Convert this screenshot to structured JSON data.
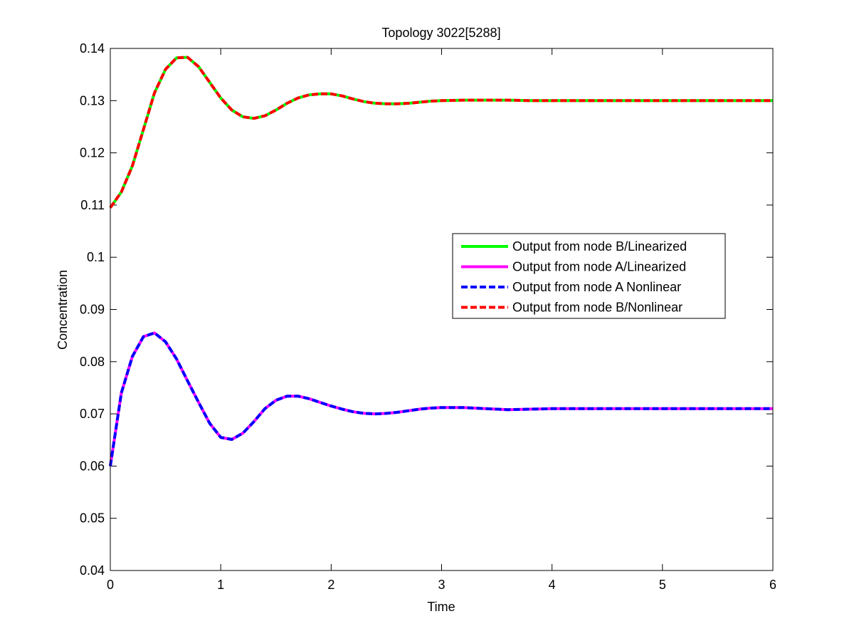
{
  "chart_data": {
    "type": "line",
    "title": "Topology 3022[5288]",
    "xlabel": "Time",
    "ylabel": "Concentration",
    "xlim": [
      0,
      6
    ],
    "ylim": [
      0.04,
      0.14
    ],
    "xticks": [
      0,
      1,
      2,
      3,
      4,
      5,
      6
    ],
    "xtick_labels": [
      "0",
      "1",
      "2",
      "3",
      "4",
      "5",
      "6"
    ],
    "yticks": [
      0.04,
      0.05,
      0.06,
      0.07,
      0.08,
      0.09,
      0.1,
      0.11,
      0.12,
      0.13,
      0.14
    ],
    "ytick_labels": [
      "0.04",
      "0.05",
      "0.06",
      "0.07",
      "0.08",
      "0.09",
      "0.1",
      "0.11",
      "0.12",
      "0.13",
      "0.14"
    ],
    "grid": false,
    "legend_position": "center-right",
    "x": [
      0,
      0.1,
      0.2,
      0.3,
      0.4,
      0.5,
      0.6,
      0.7,
      0.8,
      0.9,
      1.0,
      1.1,
      1.2,
      1.3,
      1.4,
      1.5,
      1.6,
      1.7,
      1.8,
      1.9,
      2.0,
      2.1,
      2.2,
      2.3,
      2.4,
      2.5,
      2.6,
      2.7,
      2.8,
      2.9,
      3.0,
      3.2,
      3.4,
      3.6,
      3.8,
      4.0,
      4.5,
      5.0,
      5.5,
      6.0
    ],
    "series": [
      {
        "name": "Output from node B/Linearized",
        "color": "#00ff00",
        "style": "solid",
        "values": [
          0.1095,
          0.1125,
          0.1175,
          0.1245,
          0.1315,
          0.136,
          0.1382,
          0.1383,
          0.1365,
          0.1335,
          0.1305,
          0.1282,
          0.1269,
          0.1266,
          0.1271,
          0.1282,
          0.1295,
          0.1305,
          0.1311,
          0.1313,
          0.1313,
          0.1309,
          0.1303,
          0.1298,
          0.1295,
          0.1294,
          0.1294,
          0.1295,
          0.1297,
          0.1299,
          0.13,
          0.1301,
          0.1301,
          0.1301,
          0.13,
          0.13,
          0.13,
          0.13,
          0.13,
          0.13
        ]
      },
      {
        "name": "Output from node A/Linearized",
        "color": "#ff00ff",
        "style": "solid",
        "values": [
          0.06,
          0.074,
          0.081,
          0.0848,
          0.0855,
          0.0838,
          0.0805,
          0.0763,
          0.0722,
          0.0682,
          0.0655,
          0.0651,
          0.0663,
          0.0685,
          0.071,
          0.0726,
          0.0734,
          0.0734,
          0.0729,
          0.0722,
          0.0715,
          0.0709,
          0.0704,
          0.0701,
          0.07,
          0.0701,
          0.0703,
          0.0706,
          0.0709,
          0.0711,
          0.0712,
          0.0712,
          0.071,
          0.0708,
          0.0709,
          0.071,
          0.071,
          0.071,
          0.071,
          0.071
        ]
      },
      {
        "name": "Output from node A Nonlinear",
        "color": "#0000ff",
        "style": "dashed",
        "values": [
          0.06,
          0.074,
          0.081,
          0.0848,
          0.0855,
          0.0838,
          0.0805,
          0.0763,
          0.0722,
          0.0682,
          0.0655,
          0.0651,
          0.0663,
          0.0685,
          0.071,
          0.0726,
          0.0734,
          0.0734,
          0.0729,
          0.0722,
          0.0715,
          0.0709,
          0.0704,
          0.0701,
          0.07,
          0.0701,
          0.0703,
          0.0706,
          0.0709,
          0.0711,
          0.0712,
          0.0712,
          0.071,
          0.0708,
          0.0709,
          0.071,
          0.071,
          0.071,
          0.071,
          0.071
        ]
      },
      {
        "name": "Output from node B/Nonlinear",
        "color": "#ff0000",
        "style": "dashed",
        "values": [
          0.1095,
          0.1125,
          0.1175,
          0.1245,
          0.1315,
          0.136,
          0.1382,
          0.1383,
          0.1365,
          0.1335,
          0.1305,
          0.1282,
          0.1269,
          0.1266,
          0.1271,
          0.1282,
          0.1295,
          0.1305,
          0.1311,
          0.1313,
          0.1313,
          0.1309,
          0.1303,
          0.1298,
          0.1295,
          0.1294,
          0.1294,
          0.1295,
          0.1297,
          0.1299,
          0.13,
          0.1301,
          0.1301,
          0.1301,
          0.13,
          0.13,
          0.13,
          0.13,
          0.13,
          0.13
        ]
      }
    ]
  }
}
